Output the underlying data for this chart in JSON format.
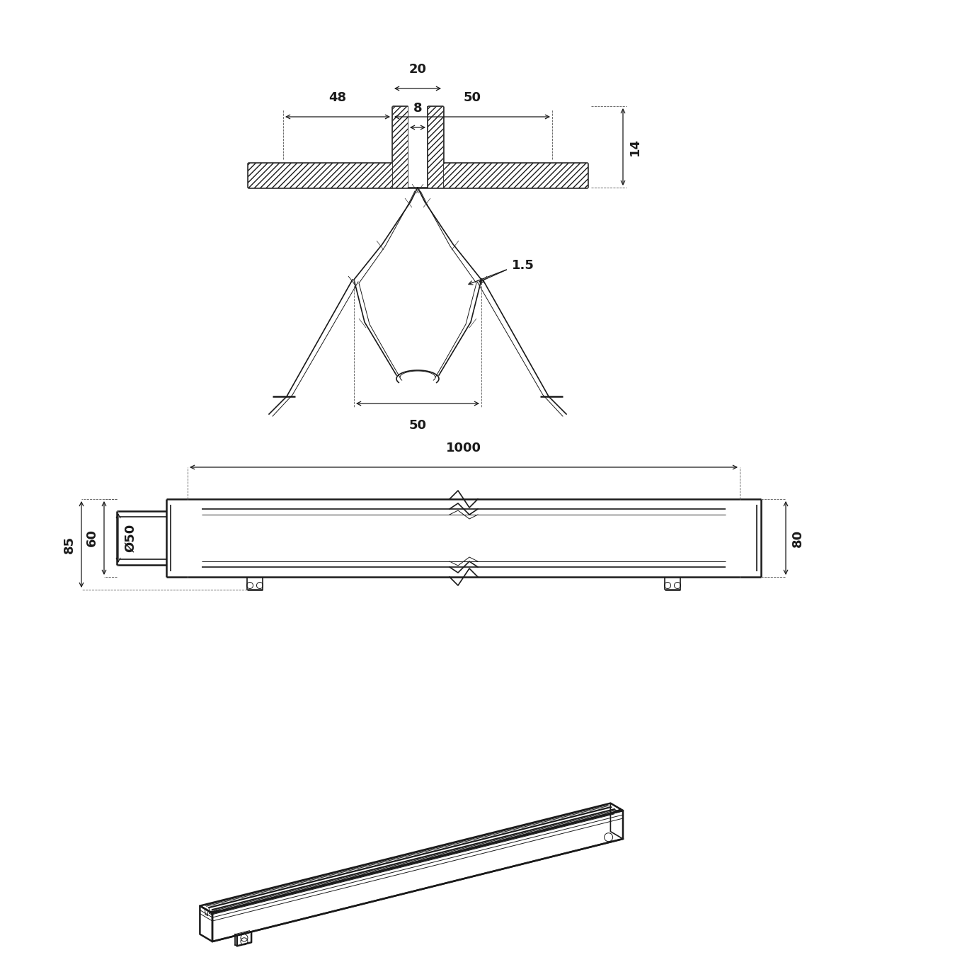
{
  "bg_color": "#ffffff",
  "line_color": "#1a1a1a",
  "lw_thin": 0.7,
  "lw_medium": 1.2,
  "lw_thick": 1.8,
  "dim_fontsize": 13,
  "fig_w": 13.66,
  "fig_h": 13.66,
  "dpi": 100
}
